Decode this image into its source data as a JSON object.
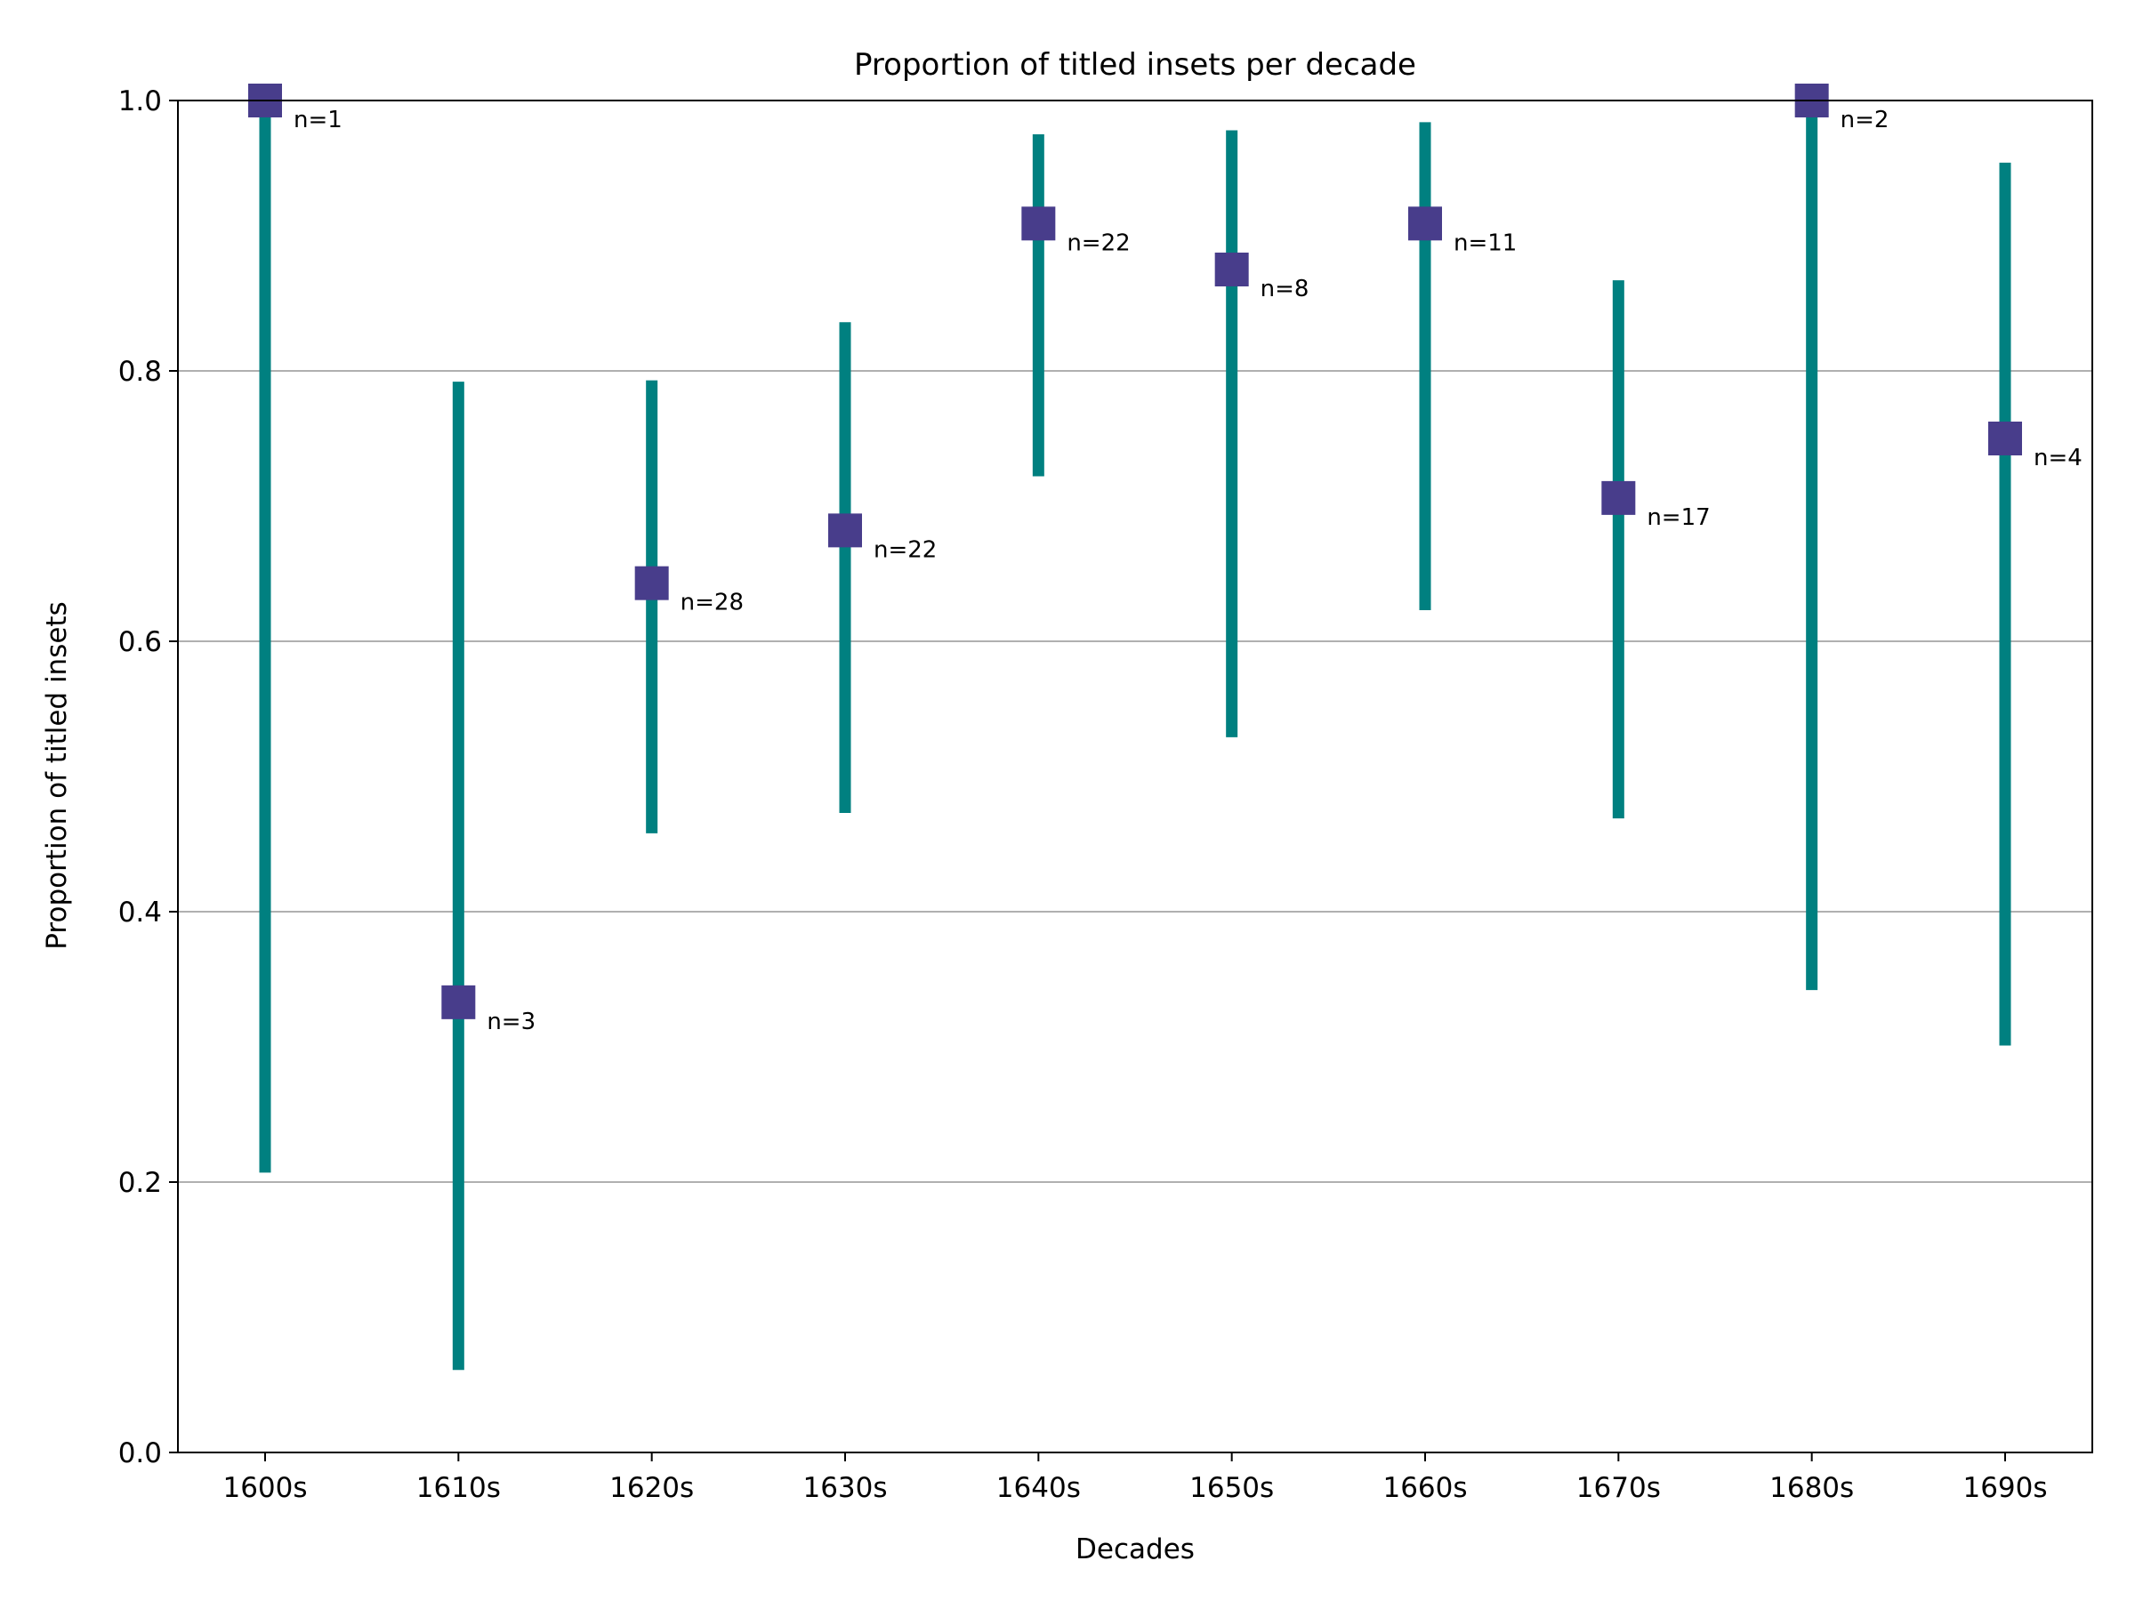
{
  "chart_data": {
    "type": "scatter",
    "title": "Proportion of titled insets per decade",
    "xlabel": "Decades",
    "ylabel": "Proportion of titled insets",
    "ylim": [
      0.0,
      1.0
    ],
    "yticks": [
      "0.0",
      "0.2",
      "0.4",
      "0.6",
      "0.8",
      "1.0"
    ],
    "grid": "horizontal",
    "categories": [
      "1600s",
      "1610s",
      "1620s",
      "1630s",
      "1640s",
      "1650s",
      "1660s",
      "1670s",
      "1680s",
      "1690s"
    ],
    "values": [
      1.0,
      0.333,
      0.643,
      0.682,
      0.909,
      0.875,
      0.909,
      0.706,
      1.0,
      0.75
    ],
    "lower": [
      0.207,
      0.061,
      0.458,
      0.473,
      0.722,
      0.529,
      0.623,
      0.469,
      0.342,
      0.301
    ],
    "upper": [
      1.0,
      0.792,
      0.793,
      0.836,
      0.975,
      0.978,
      0.984,
      0.867,
      1.0,
      0.954
    ],
    "counts": [
      "n=1",
      "n=3",
      "n=28",
      "n=22",
      "n=22",
      "n=8",
      "n=11",
      "n=17",
      "n=2",
      "n=4"
    ],
    "colors": {
      "interval": "#008080",
      "marker": "#483d8b",
      "grid": "#b0b0b0",
      "axis": "#000000"
    }
  }
}
